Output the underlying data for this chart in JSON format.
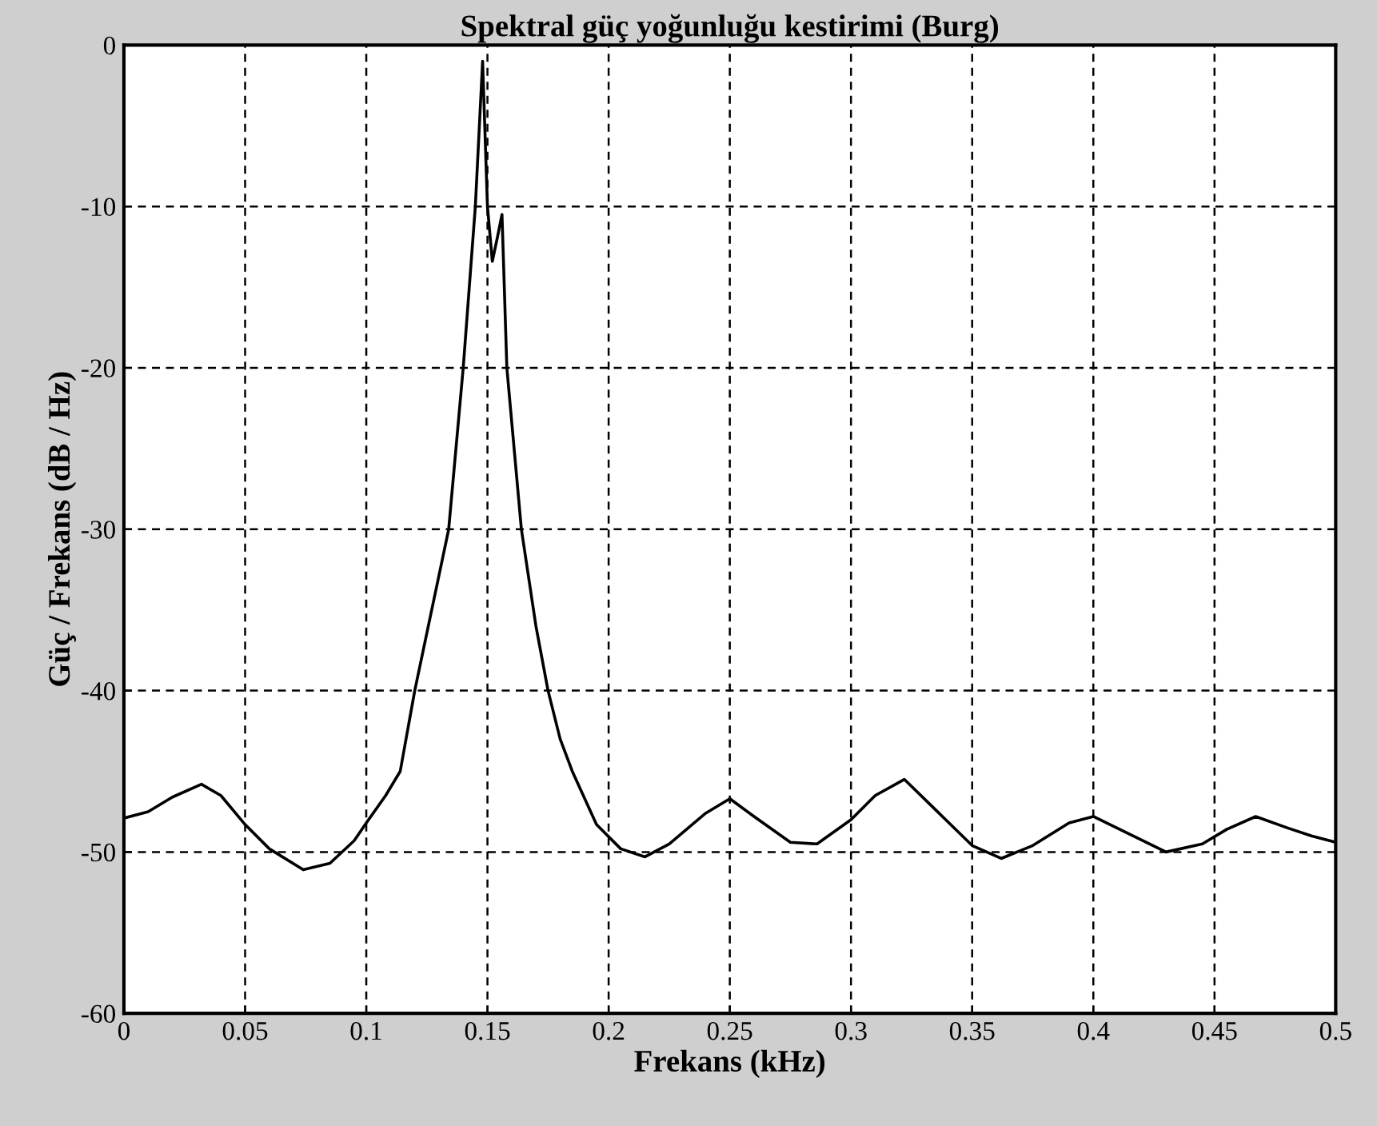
{
  "chart_data": {
    "type": "line",
    "title": "Spektral güç yoğunluğu kestirimi (Burg)",
    "xlabel": "Frekans (kHz)",
    "ylabel": "Güç / Frekans (dB / Hz)",
    "series": [
      {
        "color": "#000000",
        "x": [
          0,
          0.01,
          0.02,
          0.032,
          0.04,
          0.05,
          0.06,
          0.074,
          0.085,
          0.095,
          0.1,
          0.108,
          0.114,
          0.12,
          0.127,
          0.134,
          0.14,
          0.145,
          0.148,
          0.15,
          0.152,
          0.154,
          0.156,
          0.158,
          0.164,
          0.17,
          0.175,
          0.18,
          0.185,
          0.195,
          0.205,
          0.215,
          0.225,
          0.24,
          0.25,
          0.26,
          0.275,
          0.286,
          0.3,
          0.31,
          0.322,
          0.335,
          0.35,
          0.362,
          0.375,
          0.39,
          0.4,
          0.415,
          0.43,
          0.445,
          0.455,
          0.467,
          0.48,
          0.49,
          0.5
        ],
        "values": [
          -47.9,
          -47.5,
          -46.6,
          -45.8,
          -46.5,
          -48.3,
          -49.8,
          -51.1,
          -50.7,
          -49.3,
          -48.2,
          -46.5,
          -45,
          -40,
          -35,
          -30,
          -20,
          -10,
          -1,
          -10,
          -13.4,
          -12,
          -10.5,
          -20,
          -30,
          -36,
          -40,
          -43,
          -45,
          -48.3,
          -49.8,
          -50.3,
          -49.5,
          -47.6,
          -46.7,
          -47.8,
          -49.4,
          -49.5,
          -48,
          -46.5,
          -45.5,
          -47.4,
          -49.6,
          -50.4,
          -49.6,
          -48.2,
          -47.8,
          -48.9,
          -50,
          -49.5,
          -48.6,
          -47.8,
          -48.5,
          -49,
          -49.4
        ]
      }
    ],
    "xlim": [
      0,
      0.5
    ],
    "xticks": [
      0,
      0.05,
      0.1,
      0.15,
      0.2,
      0.25,
      0.3,
      0.35,
      0.4,
      0.45,
      0.5
    ],
    "ylim": [
      -60,
      0
    ],
    "yticks": [
      -60,
      -50,
      -40,
      -30,
      -20,
      -10,
      0
    ],
    "grid": true,
    "line_style": "solid",
    "marker": "none"
  }
}
